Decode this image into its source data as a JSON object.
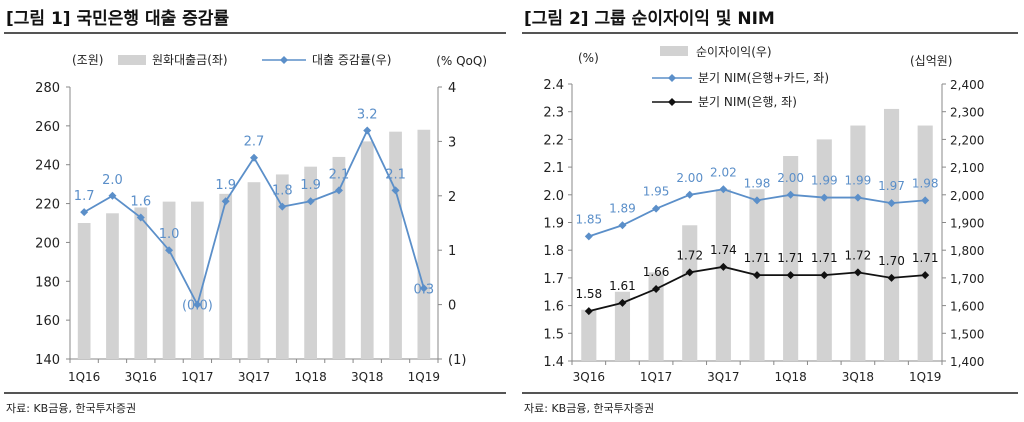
{
  "charts": [
    {
      "title": "[그림 1] 국민은행 대출 증감률",
      "source": "자료: KB금융, 한국투자증권",
      "left_unit": "(조원)",
      "right_unit": "(% QoQ)",
      "legend": [
        "원화대출금(좌)",
        "대출 증감률(우)"
      ]
    },
    {
      "title": "[그림 2] 그룹 순이자이익 및 NIM",
      "source": "자료: KB금융, 한국투자증권",
      "left_unit": "(%)",
      "right_unit": "(십억원)",
      "legend": [
        "순이자이익(우)",
        "분기 NIM(은행+카드, 좌)",
        "분기 NIM(은행, 좌)"
      ]
    }
  ],
  "chart_data": [
    {
      "type": "bar+line",
      "title": "[그림 1] 국민은행 대출 증감률",
      "categories": [
        "1Q16",
        "2Q16",
        "3Q16",
        "4Q16",
        "1Q17",
        "2Q17",
        "3Q17",
        "4Q17",
        "1Q18",
        "2Q18",
        "3Q18",
        "4Q18",
        "1Q19"
      ],
      "x_tick_labels": [
        "1Q16",
        "3Q16",
        "1Q17",
        "3Q17",
        "1Q18",
        "3Q18",
        "1Q19"
      ],
      "series": [
        {
          "name": "원화대출금(좌)",
          "type": "bar",
          "axis": "left",
          "values": [
            210,
            215,
            218,
            221,
            221,
            225,
            231,
            235,
            239,
            244,
            252,
            257,
            258
          ]
        },
        {
          "name": "대출 증감률(우)",
          "type": "line",
          "axis": "right",
          "values": [
            1.7,
            2.0,
            1.6,
            1.0,
            0.0,
            1.9,
            2.7,
            1.8,
            1.9,
            2.1,
            3.2,
            2.1,
            0.3
          ],
          "labels": [
            "1.7",
            "2.0",
            "1.6",
            "1.0",
            "(0.0)",
            "1.9",
            "2.7",
            "1.8",
            "1.9",
            "2.1",
            "3.2",
            "2.1",
            "0.3"
          ]
        }
      ],
      "ylim_left": [
        140,
        280
      ],
      "yticks_left": [
        "140",
        "160",
        "180",
        "200",
        "220",
        "240",
        "260",
        "280"
      ],
      "ylim_right": [
        -1,
        4
      ],
      "yticks_right": [
        "(1)",
        "0",
        "1",
        "2",
        "3",
        "4"
      ],
      "colors": {
        "bar": "#d2d2d2",
        "line": "#5b8fc9",
        "label": "#5b8fc9"
      },
      "legend_position": "top"
    },
    {
      "type": "bar+line",
      "title": "[그림 2] 그룹 순이자이익 및 NIM",
      "categories": [
        "3Q16",
        "4Q16",
        "1Q17",
        "2Q17",
        "3Q17",
        "4Q17",
        "1Q18",
        "2Q18",
        "3Q18",
        "4Q18",
        "1Q19"
      ],
      "x_tick_labels": [
        "3Q16",
        "1Q17",
        "3Q17",
        "1Q18",
        "3Q18",
        "1Q19"
      ],
      "series": [
        {
          "name": "순이자이익(우)",
          "type": "bar",
          "axis": "right",
          "values": [
            1585,
            1650,
            1720,
            1890,
            2020,
            2020,
            2140,
            2200,
            2250,
            2310,
            2250
          ]
        },
        {
          "name": "분기 NIM(은행+카드, 좌)",
          "type": "line",
          "axis": "left",
          "values": [
            1.85,
            1.89,
            1.95,
            2.0,
            2.02,
            1.98,
            2.0,
            1.99,
            1.99,
            1.97,
            1.98
          ],
          "labels": [
            "1.85",
            "1.89",
            "1.95",
            "2.00",
            "2.02",
            "1.98",
            "2.00",
            "1.99",
            "1.99",
            "1.97",
            "1.98"
          ]
        },
        {
          "name": "분기 NIM(은행, 좌)",
          "type": "line",
          "axis": "left",
          "values": [
            1.58,
            1.61,
            1.66,
            1.72,
            1.74,
            1.71,
            1.71,
            1.71,
            1.72,
            1.7,
            1.71
          ],
          "labels": [
            "1.58",
            "1.61",
            "1.66",
            "1.72",
            "1.74",
            "1.71",
            "1.71",
            "1.71",
            "1.72",
            "1.70",
            "1.71"
          ]
        }
      ],
      "ylim_left": [
        1.4,
        2.4
      ],
      "yticks_left": [
        "1.4",
        "1.5",
        "1.6",
        "1.7",
        "1.8",
        "1.9",
        "2.0",
        "2.1",
        "2.2",
        "2.3",
        "2.4"
      ],
      "ylim_right": [
        1400,
        2400
      ],
      "yticks_right": [
        "1,400",
        "1,500",
        "1,600",
        "1,700",
        "1,800",
        "1,900",
        "2,000",
        "2,100",
        "2,200",
        "2,300",
        "2,400"
      ],
      "colors": {
        "bar": "#d2d2d2",
        "line1": "#5b8fc9",
        "line2": "#111111"
      },
      "legend_position": "top"
    }
  ]
}
